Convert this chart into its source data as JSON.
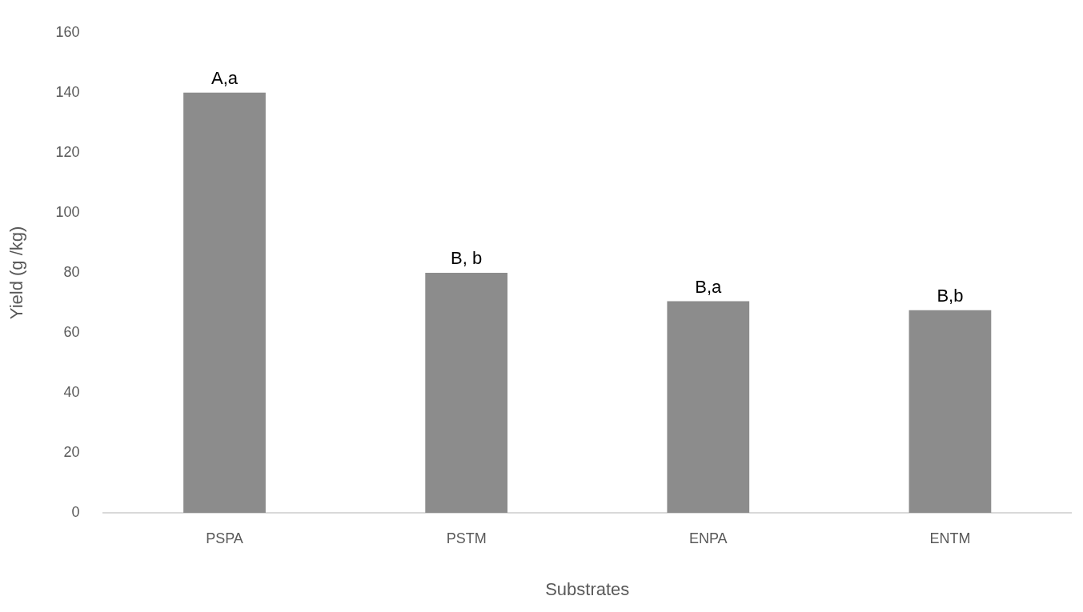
{
  "chart_data": {
    "type": "bar",
    "xlabel": "Substrates",
    "ylabel": "Yield (g /kg)",
    "categories": [
      "PSPA",
      "PSTM",
      "ENPA",
      "ENTM"
    ],
    "values": [
      140,
      80,
      70.5,
      67.5
    ],
    "color": "#8c8c8c",
    "ylim": [
      0,
      160
    ],
    "yticks": [
      0,
      20,
      40,
      60,
      80,
      100,
      120,
      140,
      160
    ],
    "annotations": [
      {
        "text": "A,a",
        "x": "PSPA",
        "y": 140
      },
      {
        "text": "B, b",
        "x": "PSTM",
        "y": 80
      },
      {
        "text": "B,a",
        "x": "ENPA",
        "y": 70.5
      },
      {
        "text": "B,b",
        "x": "ENTM",
        "y": 67.5
      }
    ]
  }
}
